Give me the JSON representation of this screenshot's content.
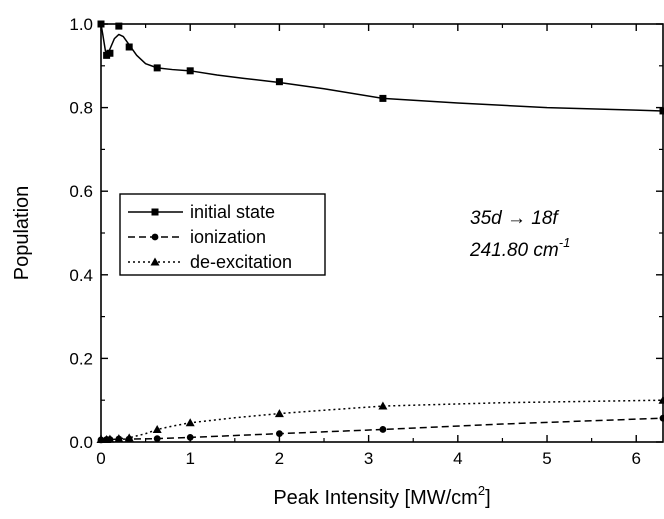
{
  "chart_data": {
    "type": "line",
    "title": "",
    "xlabel": "Peak Intensity [MW/cm",
    "xlabel_sup": "2",
    "xlabel_end": "]",
    "ylabel": "Population",
    "xlim": [
      0,
      6.3
    ],
    "ylim": [
      0,
      1.0
    ],
    "x_ticks": [
      0,
      1,
      2,
      3,
      4,
      5,
      6
    ],
    "y_ticks": [
      0.0,
      0.2,
      0.4,
      0.6,
      0.8,
      1.0
    ],
    "x_tick_labels": [
      "0",
      "1",
      "2",
      "3",
      "4",
      "5",
      "6"
    ],
    "y_tick_labels": [
      "0.0",
      "0.2",
      "0.4",
      "0.6",
      "0.8",
      "1.0"
    ],
    "grid": false,
    "legend_position": "middle-left",
    "series": [
      {
        "name": "initial state",
        "line": "solid",
        "marker": "square",
        "curve_x": [
          0,
          0.02,
          0.05,
          0.08,
          0.11,
          0.15,
          0.2,
          0.25,
          0.3,
          0.4,
          0.5,
          0.63,
          0.8,
          1.0,
          1.3,
          1.6,
          2.0,
          2.5,
          3.16,
          4.0,
          5.0,
          6.0,
          6.3
        ],
        "curve_y": [
          1.0,
          0.975,
          0.935,
          0.93,
          0.945,
          0.965,
          0.975,
          0.97,
          0.955,
          0.925,
          0.905,
          0.895,
          0.891,
          0.888,
          0.878,
          0.87,
          0.86,
          0.845,
          0.822,
          0.811,
          0.8,
          0.794,
          0.792
        ],
        "marker_x": [
          0,
          0.063,
          0.1,
          0.2,
          0.316,
          0.63,
          1.0,
          2.0,
          3.16,
          6.3
        ],
        "marker_y": [
          1.0,
          0.925,
          0.93,
          0.995,
          0.945,
          0.895,
          0.888,
          0.862,
          0.822,
          0.792
        ]
      },
      {
        "name": "ionization",
        "line": "dashed",
        "marker": "circle",
        "curve_x": [
          0,
          0.1,
          0.2,
          0.316,
          0.63,
          1.0,
          2.0,
          3.16,
          4.5,
          6.3
        ],
        "curve_y": [
          0.005,
          0.006,
          0.007,
          0.007,
          0.008,
          0.011,
          0.02,
          0.03,
          0.043,
          0.057
        ],
        "marker_x": [
          0,
          0.063,
          0.1,
          0.2,
          0.316,
          0.63,
          1.0,
          2.0,
          3.16,
          6.3
        ],
        "marker_y": [
          0.005,
          0.006,
          0.006,
          0.007,
          0.007,
          0.008,
          0.011,
          0.02,
          0.03,
          0.057
        ]
      },
      {
        "name": "de-excitation",
        "line": "dotted",
        "marker": "triangle",
        "curve_x": [
          0,
          0.1,
          0.2,
          0.316,
          0.5,
          0.63,
          0.8,
          1.0,
          1.5,
          2.0,
          2.5,
          3.16,
          4.5,
          6.3
        ],
        "curve_y": [
          0.006,
          0.007,
          0.008,
          0.01,
          0.02,
          0.03,
          0.038,
          0.046,
          0.058,
          0.068,
          0.076,
          0.086,
          0.094,
          0.1
        ],
        "marker_x": [
          0,
          0.063,
          0.1,
          0.2,
          0.316,
          0.63,
          1.0,
          2.0,
          3.16,
          6.3
        ],
        "marker_y": [
          0.006,
          0.006,
          0.007,
          0.008,
          0.01,
          0.03,
          0.046,
          0.068,
          0.086,
          0.1
        ]
      }
    ],
    "annotation": {
      "line1": "35d → 18f",
      "line2_value": "241.80 cm",
      "line2_sup": "-1"
    }
  }
}
